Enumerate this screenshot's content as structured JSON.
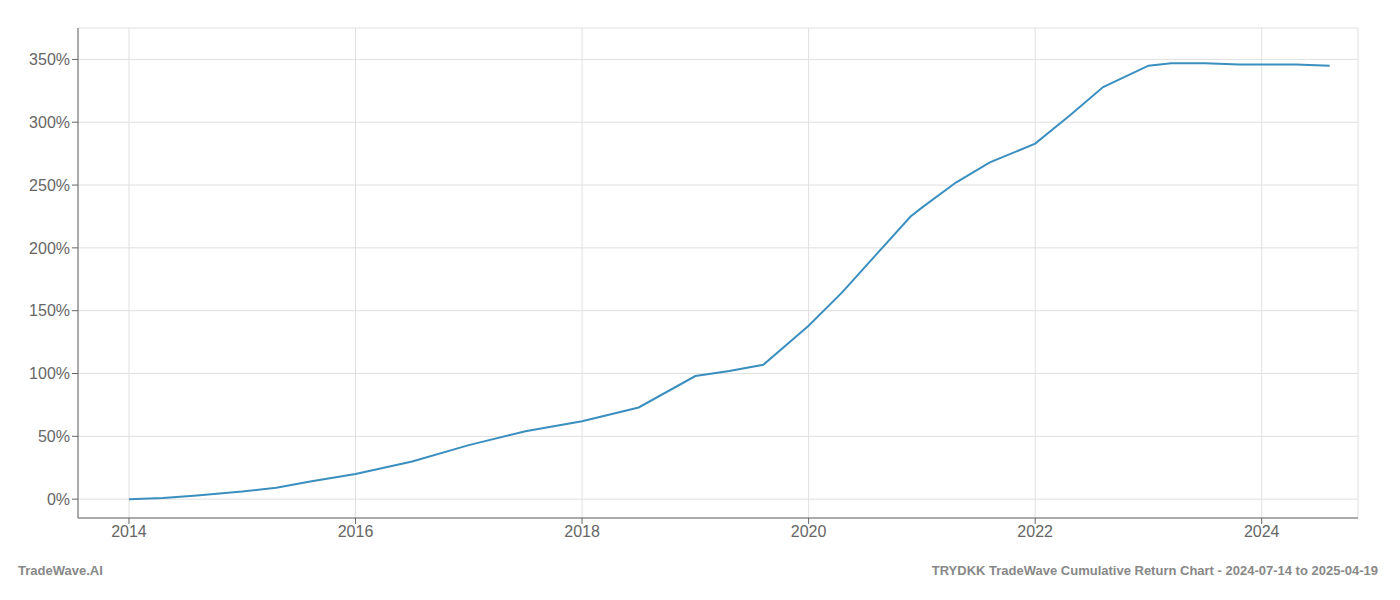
{
  "chart_data": {
    "type": "line",
    "title": "TRYDKK TradeWave Cumulative Return Chart - 2024-07-14 to 2025-04-19",
    "annotations": [
      "TradeWave.AI"
    ],
    "x": [
      2014.0,
      2014.3,
      2014.6,
      2015.0,
      2015.3,
      2015.6,
      2016.0,
      2016.5,
      2017.0,
      2017.5,
      2018.0,
      2018.5,
      2019.0,
      2019.3,
      2019.6,
      2020.0,
      2020.3,
      2020.6,
      2020.9,
      2021.0,
      2021.3,
      2021.6,
      2022.0,
      2022.3,
      2022.6,
      2023.0,
      2023.2,
      2023.5,
      2023.8,
      2024.0,
      2024.3,
      2024.6
    ],
    "values": [
      0,
      1,
      3,
      6,
      9,
      14,
      20,
      30,
      43,
      54,
      62,
      73,
      98,
      102,
      107,
      138,
      165,
      195,
      225,
      232,
      252,
      268,
      283,
      305,
      328,
      345,
      347,
      347,
      346,
      346,
      346,
      345
    ],
    "color": "#3a8fbf",
    "xlim": [
      2013.55,
      2024.85
    ],
    "xticks": [
      2014,
      2016,
      2018,
      2020,
      2022,
      2024
    ],
    "ylim": [
      -15,
      375
    ],
    "yticks": [
      {
        "value": 0,
        "label": "0%"
      },
      {
        "value": 50,
        "label": "50%"
      },
      {
        "value": 100,
        "label": "100%"
      },
      {
        "value": 150,
        "label": "150%"
      },
      {
        "value": 200,
        "label": "200%"
      },
      {
        "value": 250,
        "label": "250%"
      },
      {
        "value": 300,
        "label": "300%"
      },
      {
        "value": 350,
        "label": "350%"
      }
    ],
    "grid": true
  }
}
